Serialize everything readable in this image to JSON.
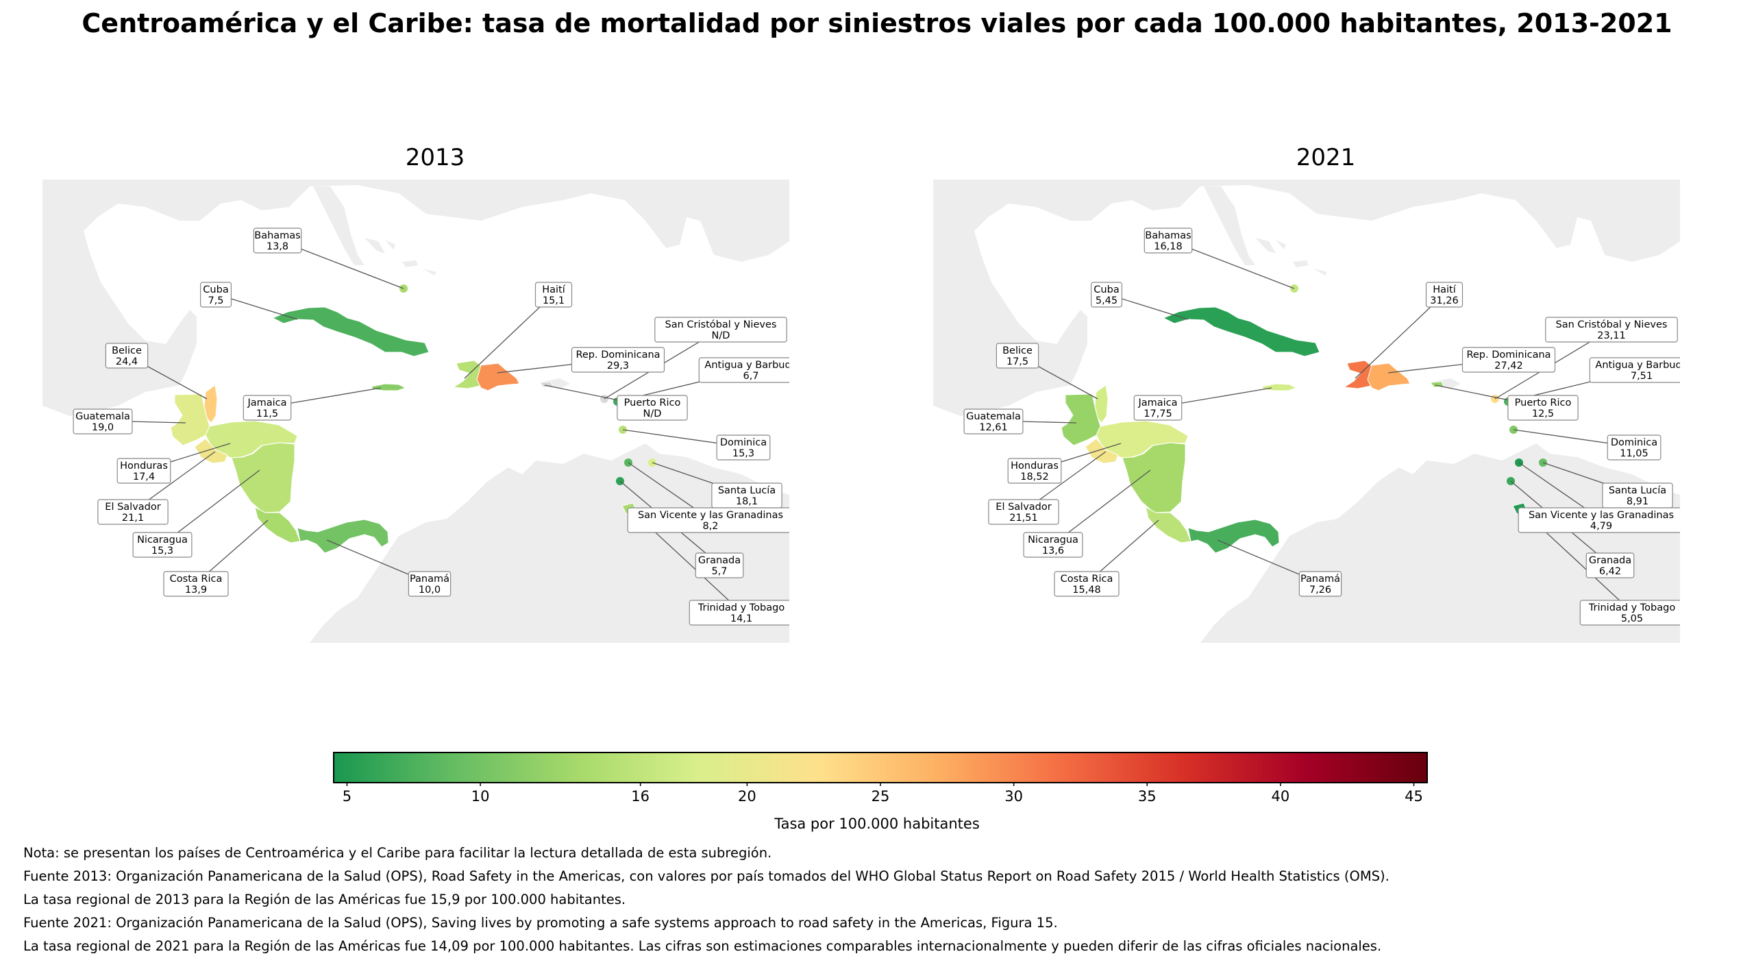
{
  "title": "Centroamérica y el Caribe: tasa de mortalidad por siniestros viales por cada 100.000 habitantes, 2013-2021",
  "panels": [
    {
      "year": "2013",
      "labels": {
        "bahamas": [
          "Bahamas",
          "13,8"
        ],
        "cuba": [
          "Cuba",
          "7,5"
        ],
        "haiti": [
          "Haití",
          "15,1"
        ],
        "skn": [
          "San Cristóbal y Nieves",
          "N/D"
        ],
        "belice": [
          "Belice",
          "24,4"
        ],
        "repdom": [
          "Rep. Dominicana",
          "29,3"
        ],
        "antigua": [
          "Antigua y Barbuda",
          "6,7"
        ],
        "jamaica": [
          "Jamaica",
          "11,5"
        ],
        "pr": [
          "Puerto Rico",
          "N/D"
        ],
        "guatemala": [
          "Guatemala",
          "19,0"
        ],
        "dominica": [
          "Dominica",
          "15,3"
        ],
        "honduras": [
          "Honduras",
          "17,4"
        ],
        "santalucia": [
          "Santa Lucía",
          "18,1"
        ],
        "salvador": [
          "El Salvador",
          "21,1"
        ],
        "svg": [
          "San Vicente y las Granadinas",
          "8,2"
        ],
        "nicaragua": [
          "Nicaragua",
          "15,3"
        ],
        "granada": [
          "Granada",
          "5,7"
        ],
        "costarica": [
          "Costa Rica",
          "13,9"
        ],
        "panama": [
          "Panamá",
          "10,0"
        ],
        "tt": [
          "Trinidad y Tobago",
          "14,1"
        ]
      }
    },
    {
      "year": "2021",
      "labels": {
        "bahamas": [
          "Bahamas",
          "16,18"
        ],
        "cuba": [
          "Cuba",
          "5,45"
        ],
        "haiti": [
          "Haití",
          "31,26"
        ],
        "skn": [
          "San Cristóbal y Nieves",
          "23,11"
        ],
        "belice": [
          "Belice",
          "17,5"
        ],
        "repdom": [
          "Rep. Dominicana",
          "27,42"
        ],
        "antigua": [
          "Antigua y Barbuda",
          "7,51"
        ],
        "jamaica": [
          "Jamaica",
          "17,75"
        ],
        "pr": [
          "Puerto Rico",
          "12,5"
        ],
        "guatemala": [
          "Guatemala",
          "12,61"
        ],
        "dominica": [
          "Dominica",
          "11,05"
        ],
        "honduras": [
          "Honduras",
          "18,52"
        ],
        "santalucia": [
          "Santa Lucía",
          "8,91"
        ],
        "salvador": [
          "El Salvador",
          "21,51"
        ],
        "svg": [
          "San Vicente y las Granadinas",
          "4,79"
        ],
        "nicaragua": [
          "Nicaragua",
          "13,6"
        ],
        "granada": [
          "Granada",
          "6,42"
        ],
        "costarica": [
          "Costa Rica",
          "15,48"
        ],
        "panama": [
          "Panamá",
          "7,26"
        ],
        "tt": [
          "Trinidad y Tobago",
          "5,05"
        ]
      }
    }
  ],
  "colorbar": {
    "label": "Tasa por 100.000 habitantes",
    "ticks": [
      "5",
      "10",
      "16",
      "20",
      "25",
      "30",
      "35",
      "40",
      "45"
    ],
    "tick_values": [
      5,
      10,
      16,
      20,
      25,
      30,
      35,
      40,
      45
    ],
    "range": [
      4.5,
      45.5
    ],
    "colors": [
      "#1a9850",
      "#66bd63",
      "#a6d96a",
      "#d9ef8b",
      "#fee08b",
      "#fdae61",
      "#f46d43",
      "#d73027",
      "#a50026",
      "#67000d"
    ]
  },
  "colors": {
    "land": "#ededed",
    "no_data": "#d9d9d9"
  },
  "notes": [
    "Nota: se presentan los países de Centroamérica y el Caribe para facilitar la lectura detallada de esta subregión.",
    "Fuente 2013: Organización Panamericana de la Salud (OPS), Road Safety in the Americas, con valores por país tomados del WHO Global Status Report on Road Safety 2015 / World Health Statistics (OMS).",
    "La tasa regional de 2013 para la Región de las Américas fue 15,9 por 100.000 habitantes.",
    "Fuente 2021: Organización Panamericana de la Salud (OPS), Saving lives by promoting a safe systems approach to road safety in the Americas, Figura 15.",
    "La tasa regional de 2021 para la Región de las Américas fue 14,09 por 100.000 habitantes. Las cifras son estimaciones comparables internacionalmente y pueden diferir de las cifras oficiales nacionales."
  ]
}
